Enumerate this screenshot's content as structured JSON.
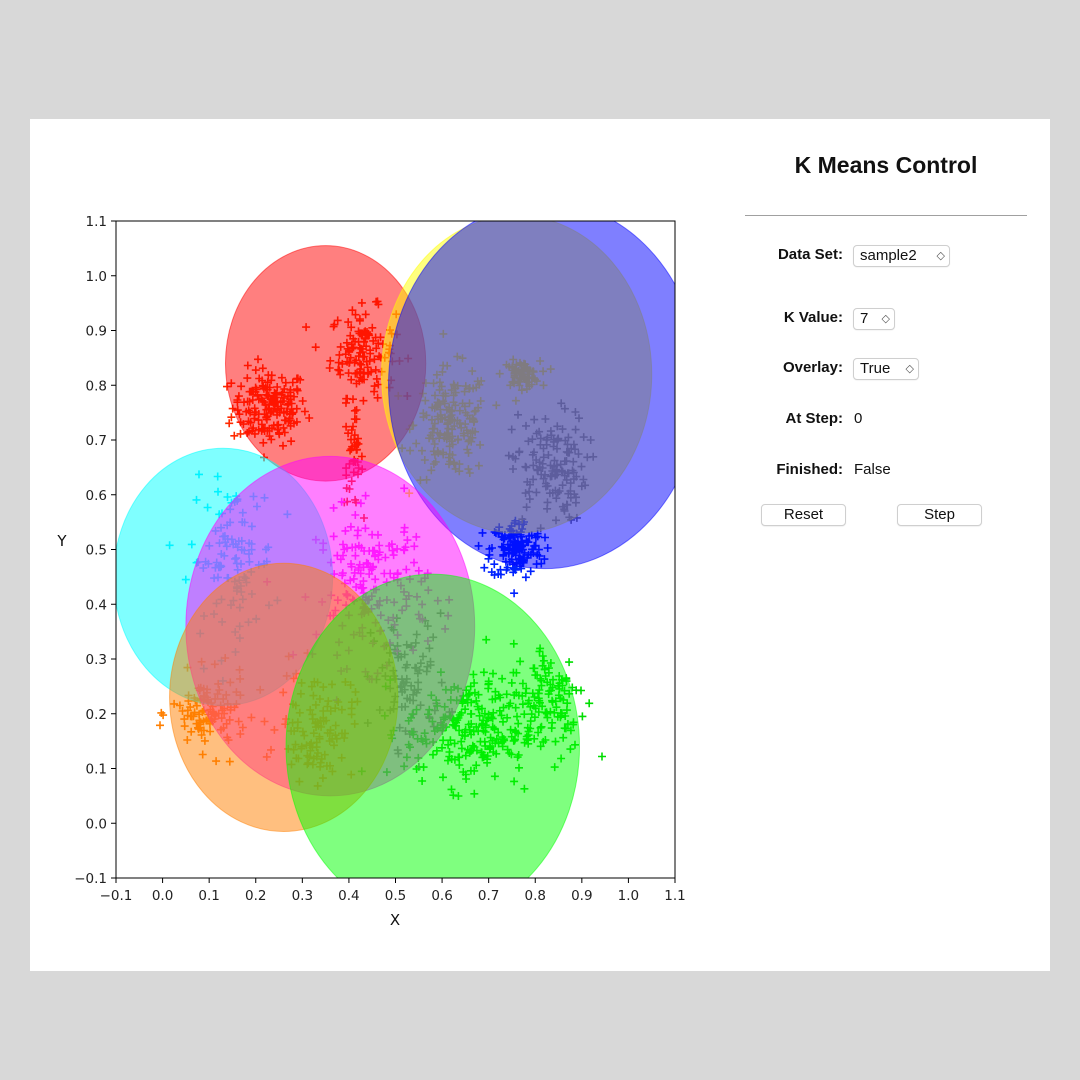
{
  "control_panel": {
    "title": "K Means Control",
    "data_set": {
      "label": "Data Set:",
      "value": "sample2"
    },
    "k_value": {
      "label": "K Value:",
      "value": "7"
    },
    "overlay": {
      "label": "Overlay:",
      "value": "True"
    },
    "at_step": {
      "label": "At Step:",
      "value": "0"
    },
    "finished": {
      "label": "Finished:",
      "value": "False"
    },
    "reset_label": "Reset",
    "step_label": "Step"
  },
  "icons": {
    "stepper": "chevron-up-down-icon"
  },
  "chart_data": {
    "type": "scatter",
    "xlabel": "X",
    "ylabel": "Y",
    "xlim": [
      -0.1,
      1.1
    ],
    "ylim": [
      -0.1,
      1.1
    ],
    "x_ticks": [
      "−0.1",
      "0.0",
      "0.1",
      "0.2",
      "0.3",
      "0.4",
      "0.5",
      "0.6",
      "0.7",
      "0.8",
      "0.9",
      "1.0",
      "1.1"
    ],
    "y_ticks": [
      "−0.1",
      "0.0",
      "0.1",
      "0.2",
      "0.3",
      "0.4",
      "0.5",
      "0.6",
      "0.7",
      "0.8",
      "0.9",
      "1.0",
      "1.1"
    ],
    "marker": "+",
    "clusters": [
      {
        "name": "red",
        "color": "#ff2a00",
        "circle_color": "#ff0000",
        "centroid": [
          0.35,
          0.84
        ],
        "radius": 0.215,
        "blobs": [
          {
            "center": [
              0.23,
              0.76
            ],
            "spread": [
              0.04,
              0.035
            ],
            "count": 170
          },
          {
            "center": [
              0.43,
              0.86
            ],
            "spread": [
              0.035,
              0.04
            ],
            "count": 130
          },
          {
            "center": [
              0.41,
              0.66
            ],
            "spread": [
              0.01,
              0.04
            ],
            "count": 40
          }
        ]
      },
      {
        "name": "yellow",
        "color": "#ffee00",
        "circle_color": "#ffff00",
        "centroid": [
          0.76,
          0.82
        ],
        "radius": 0.29,
        "blobs": [
          {
            "center": [
              0.62,
              0.73
            ],
            "spread": [
              0.04,
              0.05
            ],
            "count": 170
          },
          {
            "center": [
              0.77,
              0.82
            ],
            "spread": [
              0.02,
              0.012
            ],
            "count": 70
          }
        ]
      },
      {
        "name": "blue",
        "color": "#0022ff",
        "circle_color": "#0000ff",
        "centroid": [
          0.82,
          0.8
        ],
        "radius": 0.335,
        "blobs": [
          {
            "center": [
              0.76,
              0.5
            ],
            "spread": [
              0.028,
              0.028
            ],
            "count": 140
          }
        ]
      },
      {
        "name": "gray",
        "color": "#777777",
        "circle_color": "#777777",
        "centroid": [
          0.0,
          0.0
        ],
        "radius": 0.0,
        "blobs": [
          {
            "center": [
              0.83,
              0.65
            ],
            "spread": [
              0.04,
              0.05
            ],
            "count": 140
          },
          {
            "center": [
              0.53,
              0.26
            ],
            "spread": [
              0.04,
              0.06
            ],
            "count": 90
          }
        ]
      },
      {
        "name": "cyan",
        "color": "#00e5ff",
        "circle_color": "#00ffff",
        "centroid": [
          0.13,
          0.45
        ],
        "radius": 0.235,
        "blobs": [
          {
            "center": [
              0.15,
              0.48
            ],
            "spread": [
              0.045,
              0.07
            ],
            "count": 110
          }
        ]
      },
      {
        "name": "magenta",
        "color": "#ff33ff",
        "circle_color": "#ff00ff",
        "centroid": [
          0.36,
          0.36
        ],
        "radius": 0.31,
        "blobs": [
          {
            "center": [
              0.45,
              0.43
            ],
            "spread": [
              0.06,
              0.07
            ],
            "count": 180
          }
        ]
      },
      {
        "name": "orange",
        "color": "#ff7f00",
        "circle_color": "#ff7f00",
        "centroid": [
          0.26,
          0.23
        ],
        "radius": 0.245,
        "blobs": [
          {
            "center": [
              0.1,
              0.2
            ],
            "spread": [
              0.04,
              0.035
            ],
            "count": 110
          },
          {
            "center": [
              0.33,
              0.18
            ],
            "spread": [
              0.04,
              0.05
            ],
            "count": 110
          }
        ]
      },
      {
        "name": "green",
        "color": "#00dd00",
        "circle_color": "#00ff00",
        "centroid": [
          0.58,
          0.14
        ],
        "radius": 0.315,
        "blobs": [
          {
            "center": [
              0.66,
              0.17
            ],
            "spread": [
              0.07,
              0.05
            ],
            "count": 240
          },
          {
            "center": [
              0.83,
              0.23
            ],
            "spread": [
              0.04,
              0.05
            ],
            "count": 110
          }
        ]
      }
    ]
  }
}
